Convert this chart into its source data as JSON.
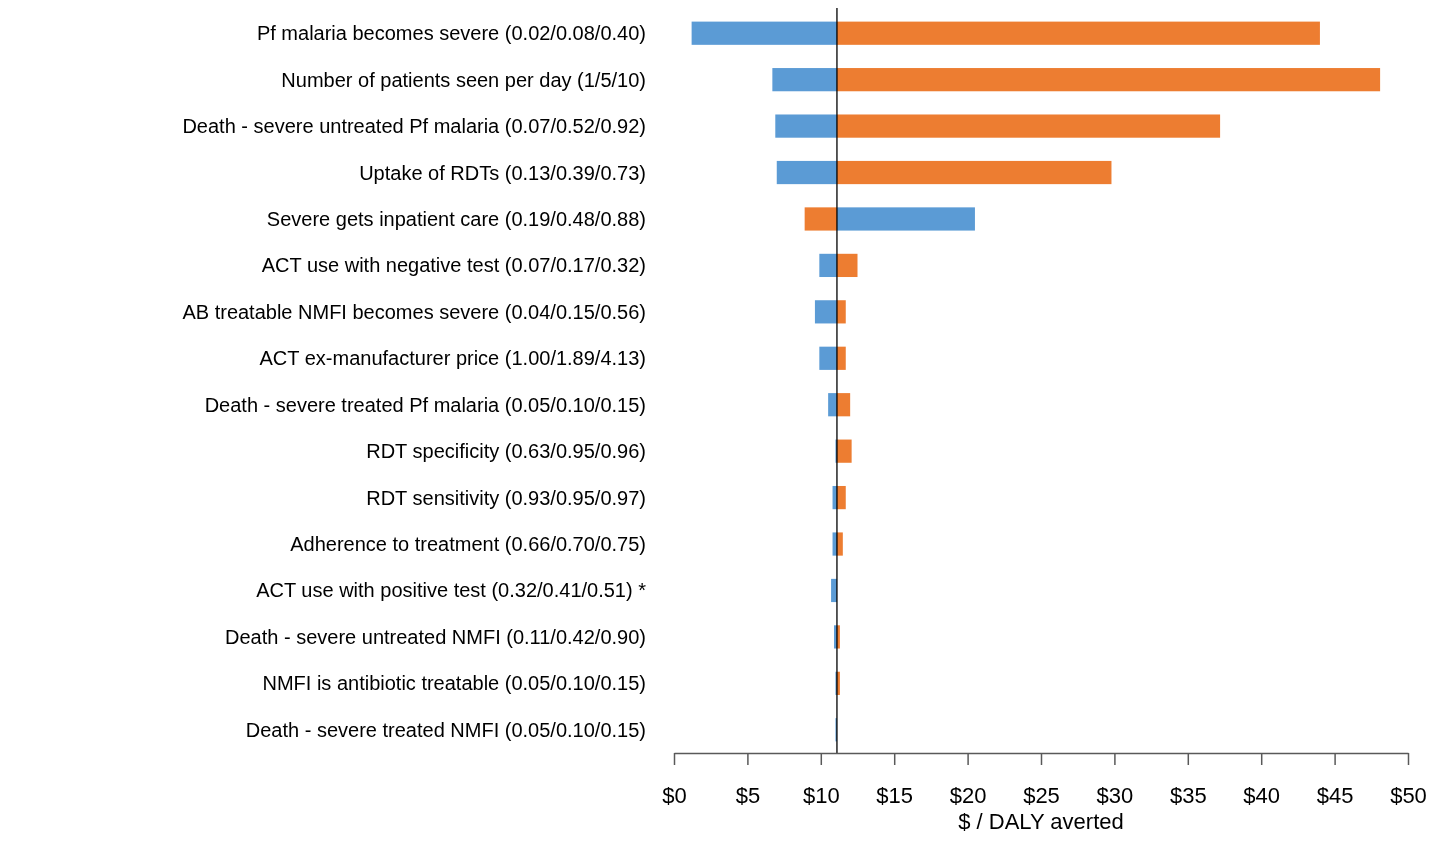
{
  "chart_data": {
    "type": "bar",
    "orientation": "horizontal",
    "xlabel": "$ / DALY averted",
    "categories": [
      "Pf malaria becomes severe (0.02/0.08/0.40)",
      "Number of patients seen per day (1/5/10)",
      "Death - severe untreated Pf malaria (0.07/0.52/0.92)",
      "Uptake of RDTs (0.13/0.39/0.73)",
      "Severe gets inpatient care (0.19/0.48/0.88)",
      "ACT use with negative test (0.07/0.17/0.32)",
      "AB treatable NMFI becomes severe (0.04/0.15/0.56)",
      "ACT ex-manufacturer price (1.00/1.89/4.13)",
      "Death - severe treated Pf malaria (0.05/0.10/0.15)",
      "RDT specificity (0.63/0.95/0.96)",
      "RDT sensitivity (0.93/0.95/0.97)",
      "Adherence to treatment (0.66/0.70/0.75)",
      "ACT use with positive test (0.32/0.41/0.51) *",
      "Death - severe untreated NMFI (0.11/0.42/0.90)",
      "NMFI is antibiotic treatable (0.05/0.10/0.15)",
      "Death - severe treated NMFI (0.05/0.10/0.15)"
    ],
    "series": [
      {
        "color": "#5b9bd5",
        "base": [
          11.1,
          11.1,
          11.1,
          11.1,
          11.1,
          11.1,
          11.1,
          11.1,
          11.1,
          11.1,
          11.1,
          11.1,
          11.1,
          11.1,
          11.1,
          11.1
        ],
        "values": [
          -9.9,
          -4.4,
          -4.2,
          -4.1,
          9.4,
          -1.2,
          -1.5,
          -1.2,
          -0.6,
          -0.1,
          -0.3,
          -0.3,
          -0.4,
          -0.2,
          -0.1,
          -0.1
        ]
      },
      {
        "color": "#ed7d31",
        "base": [
          11.1,
          11.1,
          11.1,
          11.1,
          11.1,
          11.1,
          11.1,
          11.1,
          11.1,
          11.1,
          11.1,
          11.1,
          null,
          11.1,
          11.1,
          null
        ],
        "values": [
          32.9,
          37.0,
          26.1,
          18.7,
          -2.2,
          1.4,
          0.6,
          0.6,
          0.9,
          1.0,
          0.6,
          0.4,
          null,
          0.2,
          0.2,
          null
        ]
      }
    ],
    "xlim": [
      0,
      50
    ],
    "xticks": [
      {
        "value": 0,
        "label": "$0"
      },
      {
        "value": 5,
        "label": "$5"
      },
      {
        "value": 10,
        "label": "$10"
      },
      {
        "value": 15,
        "label": "$15"
      },
      {
        "value": 20,
        "label": "$20"
      },
      {
        "value": 25,
        "label": "$25"
      },
      {
        "value": 30,
        "label": "$30"
      },
      {
        "value": 35,
        "label": "$35"
      },
      {
        "value": 40,
        "label": "$40"
      },
      {
        "value": 45,
        "label": "$45"
      },
      {
        "value": 50,
        "label": "$50"
      }
    ],
    "ref_lines": [
      {
        "axis": "x",
        "value": 11.1,
        "color": "#000000"
      }
    ],
    "grid": false
  }
}
